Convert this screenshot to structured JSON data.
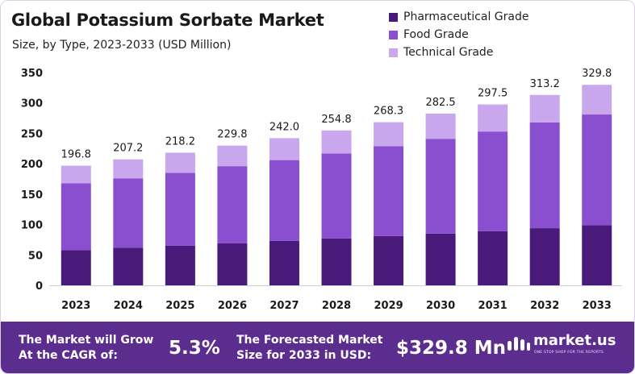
{
  "header": {
    "title": "Global Potassium Sorbate Market",
    "subtitle": "Size, by Type, 2023-2033 (USD Million)"
  },
  "chart_data": {
    "type": "bar",
    "stacked": true,
    "categories": [
      "2023",
      "2024",
      "2025",
      "2026",
      "2027",
      "2028",
      "2029",
      "2030",
      "2031",
      "2032",
      "2033"
    ],
    "series": [
      {
        "name": "Pharmaceutical Grade",
        "color": "#4a1a7a",
        "values": [
          58,
          62,
          65,
          69,
          73,
          77,
          81,
          85,
          89,
          94,
          99
        ]
      },
      {
        "name": "Food Grade",
        "color": "#8a4fd1",
        "values": [
          110,
          114,
          120,
          127,
          133,
          140,
          148,
          156,
          164,
          174,
          182
        ]
      },
      {
        "name": "Technical Grade",
        "color": "#c9a7ec",
        "values": [
          28.8,
          31.2,
          33.2,
          33.8,
          36.0,
          37.8,
          39.3,
          41.5,
          44.5,
          45.2,
          48.8
        ]
      }
    ],
    "totals": [
      "196.8",
      "207.2",
      "218.2",
      "229.8",
      "242.0",
      "254.8",
      "268.3",
      "282.5",
      "297.5",
      "313.2",
      "329.8"
    ],
    "yticks": [
      0,
      50,
      100,
      150,
      200,
      250,
      300,
      350
    ],
    "ylim": [
      0,
      350
    ],
    "legend_position": "top-right",
    "grid": false
  },
  "footer": {
    "cagr_text_line1": "The Market will Grow",
    "cagr_text_line2": "At the CAGR of:",
    "cagr_value": "5.3%",
    "forecast_text_line1": "The Forecasted Market",
    "forecast_text_line2": "Size for 2033 in USD:",
    "forecast_value": "$329.8 Mn",
    "brand_name": "market.us",
    "brand_tagline": "ONE STOP SHOP FOR THE REPORTS",
    "brand_color": "#5b2d8f"
  }
}
